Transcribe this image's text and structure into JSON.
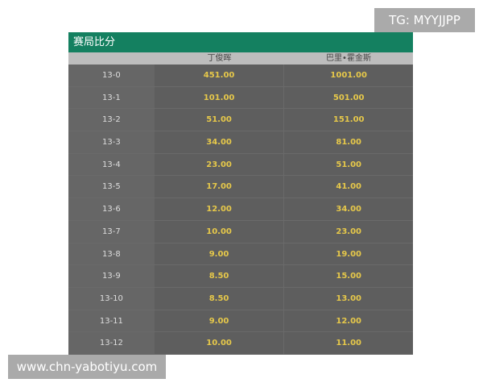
{
  "table": {
    "title": "赛局比分",
    "headers": [
      "",
      "丁俊晖",
      "巴里•霍金斯"
    ],
    "rows": [
      [
        "13-0",
        "451.00",
        "1001.00"
      ],
      [
        "13-1",
        "101.00",
        "501.00"
      ],
      [
        "13-2",
        "51.00",
        "151.00"
      ],
      [
        "13-3",
        "34.00",
        "81.00"
      ],
      [
        "13-4",
        "23.00",
        "51.00"
      ],
      [
        "13-5",
        "17.00",
        "41.00"
      ],
      [
        "13-6",
        "12.00",
        "34.00"
      ],
      [
        "13-7",
        "10.00",
        "23.00"
      ],
      [
        "13-8",
        "9.00",
        "19.00"
      ],
      [
        "13-9",
        "8.50",
        "15.00"
      ],
      [
        "13-10",
        "8.50",
        "13.00"
      ],
      [
        "13-11",
        "9.00",
        "12.00"
      ],
      [
        "13-12",
        "10.00",
        "11.00"
      ]
    ]
  },
  "watermarks": {
    "tg": "TG: MYYJJPP",
    "site": "www.chn-yabotiyu.com"
  },
  "colors": {
    "header": "#148060",
    "odds": "#e6c84a"
  }
}
